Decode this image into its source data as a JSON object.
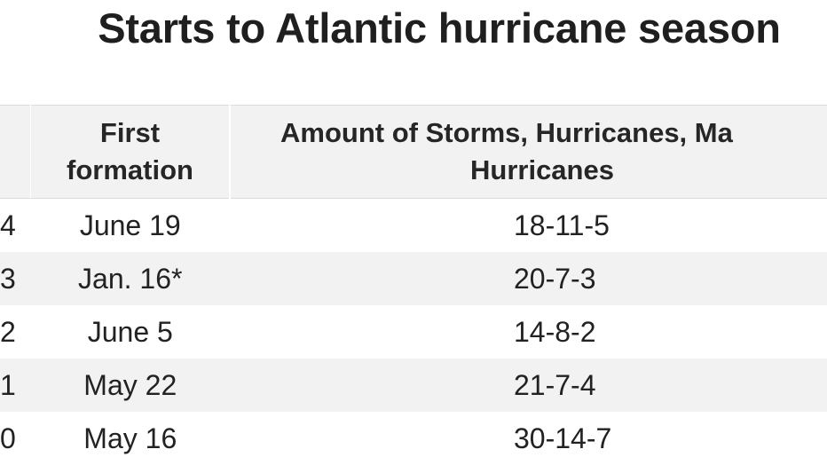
{
  "chart_data": {
    "type": "table",
    "title": "Starts to Atlantic hurricane season",
    "columns": [
      "",
      "First formation",
      "Amount of Storms, Hurricanes, Major Hurricanes"
    ],
    "header_first_line1": "First",
    "header_first_line2": "formation",
    "header_amount_line1": "Amount of Storms, Hurricanes, Ma",
    "header_amount_line2": "Hurricanes",
    "rows": [
      {
        "year": "4",
        "first": "June 19",
        "amount": "18-11-5"
      },
      {
        "year": "3",
        "first": "Jan. 16*",
        "amount": "20-7-3"
      },
      {
        "year": "2",
        "first": "June 5",
        "amount": "14-8-2"
      },
      {
        "year": "1",
        "first": "May 22",
        "amount": "21-7-4"
      },
      {
        "year": "0",
        "first": "May 16",
        "amount": "30-14-7"
      }
    ]
  },
  "colors": {
    "header_bg": "#f2f2f2",
    "stripe_bg": "#f2f2f2",
    "text": "#222222"
  }
}
